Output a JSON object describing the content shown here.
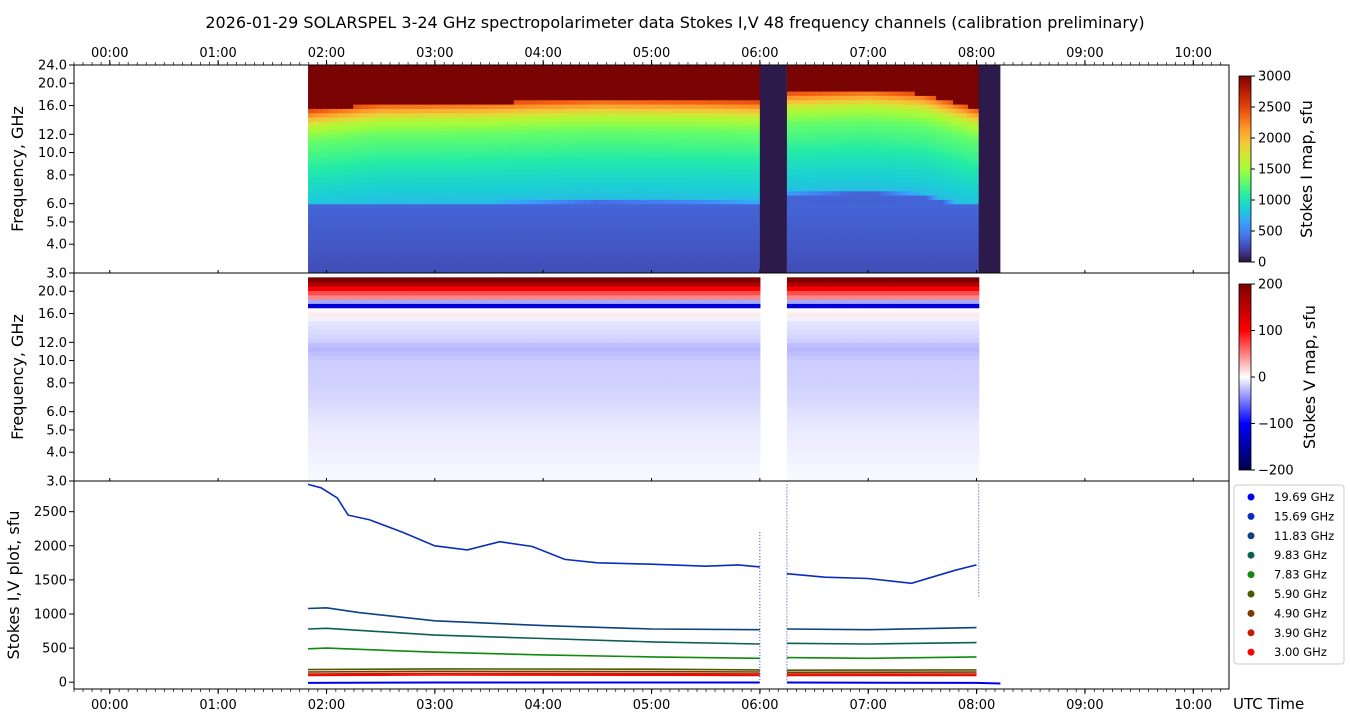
{
  "title": "2026-01-29  SOLARSPEL  3-24 GHz spectropolarimeter data   Stokes I,V   48 frequency channels   (calibration preliminary)",
  "time_axis": {
    "label": "UTC Time",
    "ticks": [
      "00:00",
      "01:00",
      "02:00",
      "03:00",
      "04:00",
      "05:00",
      "06:00",
      "07:00",
      "08:00",
      "09:00",
      "10:00"
    ],
    "range_hours": [
      -0.33,
      10.33
    ]
  },
  "colors": {
    "stokes_i_scale": [
      "#30123b",
      "#4145ab",
      "#4675ed",
      "#39a2fc",
      "#1bcfd4",
      "#24eca6",
      "#61fc6c",
      "#a4fc3b",
      "#d1e834",
      "#f3c63a",
      "#fe9b2d",
      "#f36315",
      "#d93806",
      "#b11901",
      "#7a0403"
    ],
    "stokes_v_scale": [
      "#00004c",
      "#0000ff",
      "#ffffff",
      "#ff0000",
      "#7f0000"
    ]
  },
  "chart_data": [
    {
      "type": "heatmap",
      "name": "stokes_i_map",
      "ylabel": "Frequency, GHz",
      "yticks": [
        "3.0",
        "4.0",
        "5.0",
        "6.0",
        "8.0",
        "10.0",
        "12.0",
        "16.0",
        "20.0",
        "24.0"
      ],
      "ytick_values": [
        3,
        4,
        5,
        6,
        8,
        10,
        12,
        16,
        20,
        24
      ],
      "colorbar": {
        "label": "Stokes I map, sfu",
        "range": [
          0,
          3000
        ],
        "ticks": [
          "0",
          "500",
          "1000",
          "1500",
          "2000",
          "2500",
          "3000"
        ]
      },
      "observation_segments_hours": [
        [
          1.83,
          6.0
        ],
        [
          6.25,
          8.02
        ]
      ],
      "gap_segments_hours": [
        [
          6.0,
          6.25
        ],
        [
          8.02,
          8.22
        ]
      ],
      "saturation_boundary_ghz": {
        "times": [
          1.83,
          2.5,
          3.5,
          4.5,
          5.5,
          6.0,
          6.25,
          7.0,
          7.5,
          8.0
        ],
        "freqs": [
          15.2,
          16.3,
          16.5,
          17.0,
          16.8,
          16.6,
          18.2,
          18.7,
          18.0,
          15.5
        ]
      },
      "spectrum_sfu": {
        "freqs": [
          3,
          4,
          5,
          5.9,
          6.1,
          8,
          10,
          12,
          14,
          16,
          18,
          24
        ],
        "values": [
          250,
          300,
          330,
          360,
          780,
          950,
          1150,
          1300,
          1600,
          2300,
          3000,
          3000
        ]
      }
    },
    {
      "type": "heatmap",
      "name": "stokes_v_map",
      "ylabel": "Frequency, GHz",
      "yticks": [
        "3.0",
        "4.0",
        "5.0",
        "6.0",
        "8.0",
        "10.0",
        "12.0",
        "16.0",
        "20.0"
      ],
      "ytick_values": [
        3,
        4,
        5,
        6,
        8,
        10,
        12,
        16,
        20
      ],
      "colorbar": {
        "label": "Stokes V map, sfu",
        "range": [
          -200,
          200
        ],
        "ticks": [
          "−200",
          "−100",
          "0",
          "100",
          "200"
        ]
      },
      "profile_sfu": {
        "freqs": [
          3,
          3.5,
          4,
          5,
          6,
          7,
          8,
          10,
          11.5,
          12,
          13,
          15,
          16.5,
          17.5,
          18.5,
          19.5,
          21,
          22
        ],
        "values": [
          -2,
          -4,
          -6,
          -8,
          -12,
          -16,
          -18,
          -20,
          -30,
          -20,
          -15,
          -10,
          20,
          -150,
          40,
          60,
          120,
          200
        ]
      }
    },
    {
      "type": "line",
      "name": "stokes_iv_plot",
      "ylabel": "Stokes I,V plot, sfu",
      "ylim": [
        -100,
        2950
      ],
      "yticks": [
        0,
        500,
        1000,
        1500,
        2000,
        2500
      ],
      "series": [
        {
          "name": "19.69 GHz",
          "color": "#0000e8",
          "x": [
            1.83,
            2.0,
            6.0,
            6.25,
            8.0
          ],
          "y": [
            3000,
            3000,
            3000,
            3000,
            3000
          ]
        },
        {
          "name": "15.69 GHz",
          "color": "#0a2dbd",
          "x": [
            1.83,
            1.95,
            2.1,
            2.2,
            2.4,
            2.7,
            3.0,
            3.3,
            3.6,
            3.9,
            4.2,
            4.5,
            5.0,
            5.5,
            5.8,
            6.0,
            6.25,
            6.6,
            7.0,
            7.4,
            7.8,
            8.0
          ],
          "y": [
            2900,
            2850,
            2700,
            2450,
            2380,
            2200,
            2000,
            1940,
            2060,
            1990,
            1800,
            1750,
            1730,
            1700,
            1720,
            1690,
            1590,
            1540,
            1520,
            1450,
            1640,
            1720
          ]
        },
        {
          "name": "11.83 GHz",
          "color": "#0b4280",
          "x": [
            1.83,
            2.0,
            2.3,
            3.0,
            4.0,
            5.0,
            6.0,
            6.25,
            7.0,
            8.0
          ],
          "y": [
            1080,
            1090,
            1020,
            900,
            830,
            780,
            770,
            780,
            770,
            800
          ]
        },
        {
          "name": "9.83 GHz",
          "color": "#0b6050",
          "x": [
            1.83,
            2.0,
            3.0,
            4.0,
            5.0,
            6.0,
            6.25,
            7.0,
            8.0
          ],
          "y": [
            780,
            790,
            690,
            640,
            590,
            560,
            570,
            560,
            580
          ]
        },
        {
          "name": "7.83 GHz",
          "color": "#108a10",
          "x": [
            1.83,
            2.0,
            3.0,
            4.0,
            5.0,
            6.0,
            6.25,
            7.0,
            8.0
          ],
          "y": [
            490,
            500,
            440,
            400,
            370,
            350,
            360,
            350,
            370
          ]
        },
        {
          "name": "5.90 GHz",
          "color": "#4a5c00",
          "x": [
            1.83,
            3.0,
            5.0,
            6.0,
            6.25,
            8.0
          ],
          "y": [
            185,
            195,
            190,
            180,
            175,
            180
          ]
        },
        {
          "name": "4.90 GHz",
          "color": "#7a3a00",
          "x": [
            1.83,
            3.0,
            5.0,
            6.0,
            6.25,
            8.0
          ],
          "y": [
            150,
            160,
            155,
            150,
            145,
            148
          ]
        },
        {
          "name": "3.90 GHz",
          "color": "#c02000",
          "x": [
            1.83,
            3.0,
            5.0,
            6.0,
            6.25,
            8.0
          ],
          "y": [
            120,
            128,
            125,
            122,
            118,
            120
          ]
        },
        {
          "name": "3.00 GHz",
          "color": "#ff0000",
          "x": [
            1.83,
            3.0,
            5.0,
            6.0,
            6.25,
            8.0
          ],
          "y": [
            100,
            105,
            102,
            100,
            98,
            100
          ]
        }
      ],
      "v_trace": {
        "color": "#0000e8",
        "x": [
          1.83,
          3.0,
          6.0,
          6.25,
          8.0,
          8.22
        ],
        "y": [
          -10,
          -5,
          -5,
          -5,
          -10,
          -20
        ]
      }
    }
  ]
}
